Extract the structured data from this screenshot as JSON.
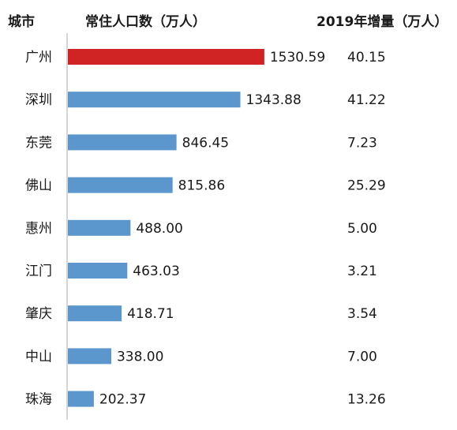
{
  "headers": {
    "city": "城市",
    "population": "常住人口数（万人）",
    "increase": "2019年增量（万人）"
  },
  "colors": {
    "highlight": "#d02323",
    "bar": "#5b97cc",
    "axis": "#c8c8c8"
  },
  "chart_data": {
    "type": "bar",
    "orientation": "horizontal",
    "categories": [
      "广州",
      "深圳",
      "东莞",
      "佛山",
      "惠州",
      "江门",
      "肇庆",
      "中山",
      "珠海"
    ],
    "series": [
      {
        "name": "常住人口数（万人）",
        "values": [
          1530.59,
          1343.88,
          846.45,
          815.86,
          488.0,
          463.03,
          418.71,
          338.0,
          202.37
        ],
        "labels": [
          "1530.59",
          "1343.88",
          "846.45",
          "815.86",
          "488.00",
          "463.03",
          "418.71",
          "338.00",
          "202.37"
        ]
      }
    ],
    "increase": {
      "name": "2019年增量（万人）",
      "values": [
        40.15,
        41.22,
        7.23,
        25.29,
        5.0,
        3.21,
        3.54,
        7.0,
        13.26
      ],
      "labels": [
        "40.15",
        "41.22",
        "7.23",
        "25.29",
        "5.00",
        "3.21",
        "3.54",
        "7.00",
        "13.26"
      ]
    },
    "highlight_index": 0,
    "xlim": [
      0,
      1700
    ],
    "grid": false,
    "legend": "none"
  }
}
